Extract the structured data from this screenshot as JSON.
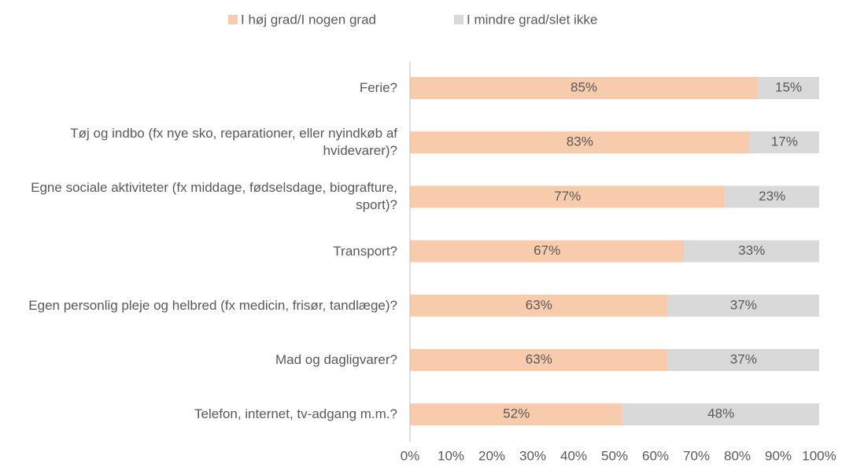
{
  "chart_data": {
    "type": "stacked_barh",
    "categories": [
      "Ferie?",
      "Tøj og indbo (fx nye sko, reparationer, eller nyindkøb af hvidevarer)?",
      "Egne sociale aktiviteter (fx middage, fødselsdage, biografture, sport)?",
      "Transport?",
      "Egen personlig pleje og helbred (fx medicin, frisør, tandlæge)?",
      "Mad og dagligvarer?",
      "Telefon, internet, tv-adgang m.m.?"
    ],
    "series": [
      {
        "name": "I høj grad/I nogen grad",
        "color": "#f8cbad",
        "values": [
          85,
          83,
          77,
          67,
          63,
          63,
          52
        ],
        "value_labels": [
          "85%",
          "83%",
          "77%",
          "67%",
          "63%",
          "63%",
          "52%"
        ]
      },
      {
        "name": "I mindre grad/slet ikke",
        "color": "#d9d9d9",
        "values": [
          15,
          17,
          23,
          33,
          37,
          37,
          48
        ],
        "value_labels": [
          "15%",
          "17%",
          "23%",
          "33%",
          "37%",
          "37%",
          "48%"
        ]
      }
    ],
    "xlim": [
      0,
      100
    ],
    "xticks": [
      {
        "value": 0,
        "label": "0%"
      },
      {
        "value": 10,
        "label": "10%"
      },
      {
        "value": 20,
        "label": "20%"
      },
      {
        "value": 30,
        "label": "30%"
      },
      {
        "value": 40,
        "label": "40%"
      },
      {
        "value": 50,
        "label": "50%"
      },
      {
        "value": 60,
        "label": "60%"
      },
      {
        "value": 70,
        "label": "70%"
      },
      {
        "value": 80,
        "label": "80%"
      },
      {
        "value": 90,
        "label": "90%"
      },
      {
        "value": 100,
        "label": "100%"
      }
    ],
    "legend": "top",
    "grid": false
  }
}
